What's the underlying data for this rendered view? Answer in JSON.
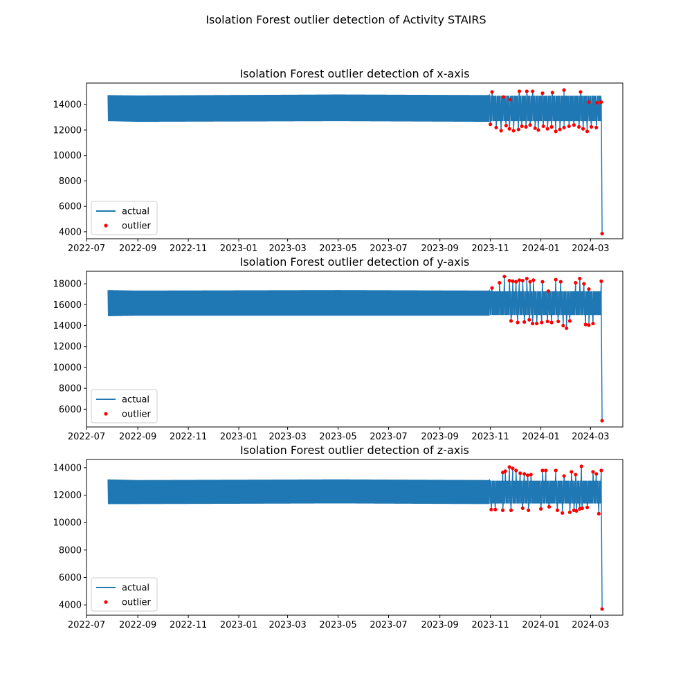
{
  "figure": {
    "title": "Isolation Forest outlier detection of Activity STAIRS",
    "series_color": "#1f77b4",
    "outlier_color": "#ff0000"
  },
  "chart_data": [
    {
      "type": "line",
      "title": "Isolation Forest outlier detection of x-axis",
      "xlabel": "",
      "ylabel": "",
      "x_range": [
        "2022-07-01",
        "2024-04-09"
      ],
      "ylim": [
        3450,
        15700
      ],
      "x_ticks": [
        "2022-07",
        "2022-09",
        "2022-11",
        "2023-01",
        "2023-03",
        "2023-05",
        "2023-07",
        "2023-09",
        "2023-11",
        "2024-01",
        "2024-03"
      ],
      "y_ticks": [
        4000,
        6000,
        8000,
        10000,
        12000,
        14000
      ],
      "grid": false,
      "legend": {
        "placement": "lower-left",
        "entries": [
          "actual",
          "outlier"
        ]
      },
      "series": [
        {
          "name": "actual",
          "kind": "line",
          "x_start": "2022-07-27",
          "x_dense_end": "2023-10-31",
          "x_end": "2024-03-14",
          "envelope": [
            {
              "x": "2022-07-27",
              "high": 14750,
              "low": 12700
            },
            {
              "x": "2022-09-01",
              "high": 14720,
              "low": 12650
            },
            {
              "x": "2023-05-01",
              "high": 14800,
              "low": 12700
            },
            {
              "x": "2023-10-31",
              "high": 14750,
              "low": 12650
            }
          ],
          "final_drop": {
            "from": 14200,
            "to": 3850
          }
        },
        {
          "name": "outlier",
          "kind": "scatter",
          "high_x": [
            "2023-11-03",
            "2023-11-17",
            "2023-11-25",
            "2023-12-06",
            "2023-12-15",
            "2023-12-22",
            "2024-01-03",
            "2024-01-15",
            "2024-01-29",
            "2024-02-18",
            "2024-02-28",
            "2024-03-09",
            "2024-03-14"
          ],
          "high_y": [
            15000,
            14600,
            14400,
            15050,
            15050,
            15050,
            14900,
            14950,
            15150,
            15000,
            14200,
            14150,
            14200
          ],
          "low_x": [
            "2023-11-01",
            "2023-11-08",
            "2023-11-14",
            "2023-11-20",
            "2023-11-24",
            "2023-11-29",
            "2023-12-05",
            "2023-12-09",
            "2023-12-14",
            "2023-12-19",
            "2023-12-25",
            "2023-12-29",
            "2024-01-04",
            "2024-01-09",
            "2024-01-14",
            "2024-01-19",
            "2024-01-24",
            "2024-01-29",
            "2024-02-04",
            "2024-02-10",
            "2024-02-16",
            "2024-02-21",
            "2024-02-26",
            "2024-03-02",
            "2024-03-08"
          ],
          "low_y": [
            12450,
            12200,
            11950,
            12350,
            12100,
            11950,
            12050,
            12300,
            12250,
            12400,
            12150,
            12000,
            12300,
            12100,
            12250,
            11900,
            12050,
            12200,
            12300,
            12400,
            12250,
            12100,
            11900,
            12250,
            12200
          ],
          "final": {
            "x": "2024-03-15",
            "y": 3850
          }
        }
      ]
    },
    {
      "type": "line",
      "title": "Isolation Forest outlier detection of y-axis",
      "xlabel": "",
      "ylabel": "",
      "x_range": [
        "2022-07-01",
        "2024-04-09"
      ],
      "ylim": [
        4300,
        19200
      ],
      "x_ticks": [
        "2022-07",
        "2022-09",
        "2022-11",
        "2023-01",
        "2023-03",
        "2023-05",
        "2023-07",
        "2023-09",
        "2023-11",
        "2024-01",
        "2024-03"
      ],
      "y_ticks": [
        6000,
        8000,
        10000,
        12000,
        14000,
        16000,
        18000
      ],
      "grid": false,
      "legend": {
        "placement": "lower-left",
        "entries": [
          "actual",
          "outlier"
        ]
      },
      "series": [
        {
          "name": "actual",
          "kind": "line",
          "x_start": "2022-07-27",
          "x_dense_end": "2023-10-31",
          "x_end": "2024-03-14",
          "envelope": [
            {
              "x": "2022-07-27",
              "high": 17400,
              "low": 14900
            },
            {
              "x": "2022-09-01",
              "high": 17350,
              "low": 14950
            },
            {
              "x": "2023-05-01",
              "high": 17400,
              "low": 14950
            },
            {
              "x": "2023-10-31",
              "high": 17350,
              "low": 14950
            }
          ],
          "final_drop": {
            "from": 15800,
            "to": 4900
          }
        },
        {
          "name": "outlier",
          "kind": "scatter",
          "high_x": [
            "2023-11-03",
            "2023-11-12",
            "2023-11-18",
            "2023-11-24",
            "2023-11-28",
            "2023-12-02",
            "2023-12-06",
            "2023-12-10",
            "2023-12-15",
            "2023-12-19",
            "2023-12-23",
            "2024-01-03",
            "2024-01-10",
            "2024-01-19",
            "2024-01-25",
            "2024-02-12",
            "2024-02-17",
            "2024-02-22",
            "2024-02-28",
            "2024-03-14"
          ],
          "high_y": [
            17600,
            18100,
            18700,
            18300,
            18250,
            18200,
            18350,
            18300,
            18500,
            18200,
            18350,
            18200,
            17300,
            18400,
            18200,
            18100,
            18500,
            18000,
            17500,
            18250
          ],
          "low_x": [
            "2023-11-26",
            "2023-12-04",
            "2023-12-12",
            "2023-12-18",
            "2023-12-22",
            "2023-12-27",
            "2024-01-02",
            "2024-01-09",
            "2024-01-14",
            "2024-01-22",
            "2024-01-28",
            "2024-02-01",
            "2024-02-05",
            "2024-02-24",
            "2024-02-28",
            "2024-03-04"
          ],
          "low_y": [
            14450,
            14300,
            14350,
            14550,
            14200,
            14200,
            14300,
            14400,
            14300,
            14400,
            14000,
            13750,
            14450,
            14100,
            14050,
            14200
          ],
          "final": {
            "x": "2024-03-15",
            "y": 4900
          }
        }
      ]
    },
    {
      "type": "line",
      "title": "Isolation Forest outlier detection of z-axis",
      "xlabel": "",
      "ylabel": "",
      "x_range": [
        "2022-07-01",
        "2024-04-09"
      ],
      "ylim": [
        3250,
        14600
      ],
      "x_ticks": [
        "2022-07",
        "2022-09",
        "2022-11",
        "2023-01",
        "2023-03",
        "2023-05",
        "2023-07",
        "2023-09",
        "2023-11",
        "2024-01",
        "2024-03"
      ],
      "y_ticks": [
        4000,
        6000,
        8000,
        10000,
        12000,
        14000
      ],
      "grid": false,
      "legend": {
        "placement": "lower-left",
        "entries": [
          "actual",
          "outlier"
        ]
      },
      "series": [
        {
          "name": "actual",
          "kind": "line",
          "x_start": "2022-07-27",
          "x_dense_end": "2023-10-31",
          "x_end": "2024-03-14",
          "envelope": [
            {
              "x": "2022-07-27",
              "high": 13150,
              "low": 11350
            },
            {
              "x": "2022-09-01",
              "high": 13100,
              "low": 11350
            },
            {
              "x": "2023-05-01",
              "high": 13150,
              "low": 11400
            },
            {
              "x": "2023-10-31",
              "high": 13100,
              "low": 11350
            }
          ],
          "final_drop": {
            "from": 12500,
            "to": 3700
          }
        },
        {
          "name": "outlier",
          "kind": "scatter",
          "high_x": [
            "2023-11-16",
            "2023-11-19",
            "2023-11-24",
            "2023-11-28",
            "2023-12-02",
            "2023-12-07",
            "2023-12-12",
            "2023-12-16",
            "2023-12-20",
            "2024-01-03",
            "2024-01-07",
            "2024-01-19",
            "2024-01-29",
            "2024-02-07",
            "2024-02-12",
            "2024-02-19",
            "2024-03-04",
            "2024-03-08",
            "2024-03-14"
          ],
          "high_y": [
            13650,
            13750,
            14050,
            13950,
            13800,
            13600,
            13550,
            13450,
            13500,
            13800,
            13800,
            13800,
            13400,
            13700,
            13500,
            14100,
            13700,
            13550,
            13800
          ],
          "low_x": [
            "2023-11-02",
            "2023-11-07",
            "2023-11-16",
            "2023-11-26",
            "2023-12-10",
            "2023-12-17",
            "2024-01-01",
            "2024-01-11",
            "2024-01-21",
            "2024-01-27",
            "2024-02-05",
            "2024-02-10",
            "2024-02-13",
            "2024-02-17",
            "2024-02-20",
            "2024-02-26",
            "2024-03-11"
          ],
          "low_y": [
            10950,
            10950,
            10900,
            10900,
            11050,
            10900,
            11000,
            11150,
            10900,
            10700,
            10750,
            10900,
            10850,
            11000,
            11050,
            11100,
            10650
          ],
          "final": {
            "x": "2024-03-15",
            "y": 3700
          }
        }
      ]
    }
  ]
}
